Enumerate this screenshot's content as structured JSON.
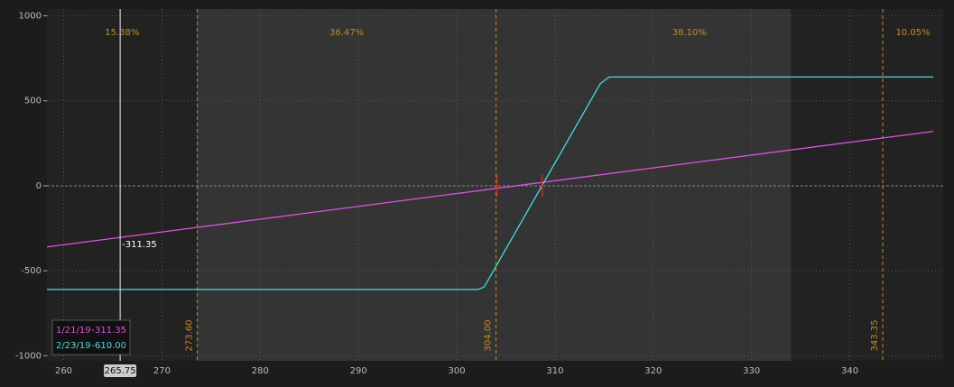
{
  "chart_data": {
    "type": "line",
    "xlim": [
      258.3,
      349.5
    ],
    "ylim": [
      -1030,
      1040
    ],
    "xticks": [
      260,
      270,
      280,
      290,
      300,
      310,
      320,
      330,
      340
    ],
    "yticks": [
      1000,
      500,
      0,
      -500,
      -1000
    ],
    "grid": true,
    "series": [
      {
        "name": "1/21/19",
        "color": "#e050e0",
        "x": [
          258.3,
          348.5
        ],
        "values": [
          -360,
          320
        ]
      },
      {
        "name": "2/23/19",
        "color": "#40dede",
        "x": [
          258.3,
          302.2,
          302.8,
          314.6,
          315.5,
          348.5
        ],
        "values": [
          -610,
          -610,
          -595,
          600,
          640,
          640
        ]
      }
    ],
    "markers": [
      {
        "value": 273.6,
        "label": "273.60"
      },
      {
        "value": 304,
        "label": "304.00"
      },
      343.35
    ],
    "probabilities": {
      "values": [
        15.38,
        36.47,
        38.1,
        10.05
      ],
      "value_labels": [
        "15.38%",
        "36.47%",
        "38.10%",
        "10.05%"
      ]
    },
    "shaded_band": [
      273.6,
      334
    ],
    "breakevens": [
      304.1,
      308.7
    ],
    "crosshair": {
      "x": 265.75,
      "readouts": [
        -311.35,
        {
          "value": -610,
          "label": "-610.00"
        }
      ]
    }
  }
}
